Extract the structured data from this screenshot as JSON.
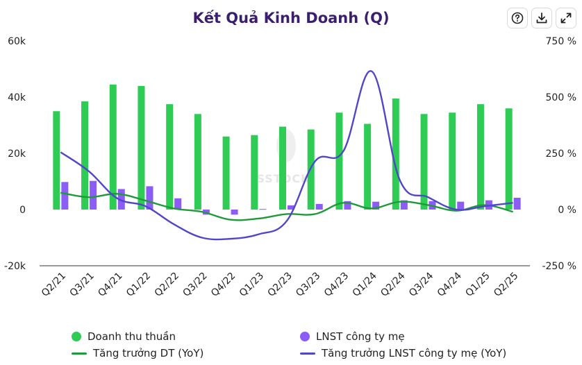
{
  "header": {
    "title": "Kết Quả Kinh Doanh (Q)",
    "icons": [
      "help-icon",
      "download-icon",
      "expand-icon"
    ]
  },
  "watermark": "SSTOCK",
  "colors": {
    "revenue": "#2ecc55",
    "profit": "#8b5cf6",
    "revenue_growth": "#1f9a3a",
    "profit_growth": "#4f46c9",
    "title": "#3b1f6e"
  },
  "legend": {
    "revenue": "Doanh thu thuần",
    "profit": "LNST công ty mẹ",
    "revenue_growth": "Tăng trưởng DT (YoY)",
    "profit_growth": "Tăng trưởng LNST công ty mẹ (YoY)"
  },
  "chart_data": {
    "type": "bar",
    "title": "Kết Quả Kinh Doanh (Q)",
    "categories": [
      "Q2/21",
      "Q3/21",
      "Q4/21",
      "Q1/22",
      "Q2/22",
      "Q3/22",
      "Q4/22",
      "Q1/23",
      "Q2/23",
      "Q3/23",
      "Q4/23",
      "Q1/24",
      "Q2/24",
      "Q3/24",
      "Q4/24",
      "Q1/25",
      "Q2/25"
    ],
    "left_axis": {
      "ticks": [
        "60k",
        "40k",
        "20k",
        "0",
        "-20k"
      ],
      "ylim": [
        -20000,
        60000
      ]
    },
    "right_axis": {
      "ticks": [
        "750 %",
        "500 %",
        "250 %",
        "0 %",
        "-250 %"
      ],
      "ylim": [
        -250,
        750
      ]
    },
    "series": [
      {
        "name": "Doanh thu thuần",
        "type": "bar",
        "axis": "left",
        "values": [
          35000,
          38500,
          44500,
          44000,
          37500,
          34000,
          26000,
          26500,
          29500,
          28500,
          34500,
          30500,
          39500,
          34000,
          34500,
          37500,
          36000
        ]
      },
      {
        "name": "LNST công ty mẹ",
        "type": "bar",
        "axis": "left",
        "values": [
          9800,
          10200,
          7300,
          8300,
          4000,
          -1800,
          -1800,
          200,
          1500,
          2000,
          3000,
          2800,
          3300,
          3000,
          2800,
          3300,
          4200
        ]
      },
      {
        "name": "Tăng trưởng DT (YoY)",
        "type": "line",
        "axis": "right",
        "values": [
          75,
          55,
          70,
          40,
          5,
          -10,
          -45,
          -40,
          -20,
          -20,
          30,
          5,
          35,
          20,
          -5,
          20,
          -10
        ]
      },
      {
        "name": "Tăng trưởng LNST công ty mẹ (YoY)",
        "type": "line",
        "axis": "right",
        "values": [
          255,
          170,
          50,
          15,
          -65,
          -125,
          -130,
          -110,
          -50,
          215,
          260,
          615,
          130,
          55,
          0,
          15,
          30
        ]
      }
    ],
    "grid": false,
    "legend_position": "bottom"
  }
}
